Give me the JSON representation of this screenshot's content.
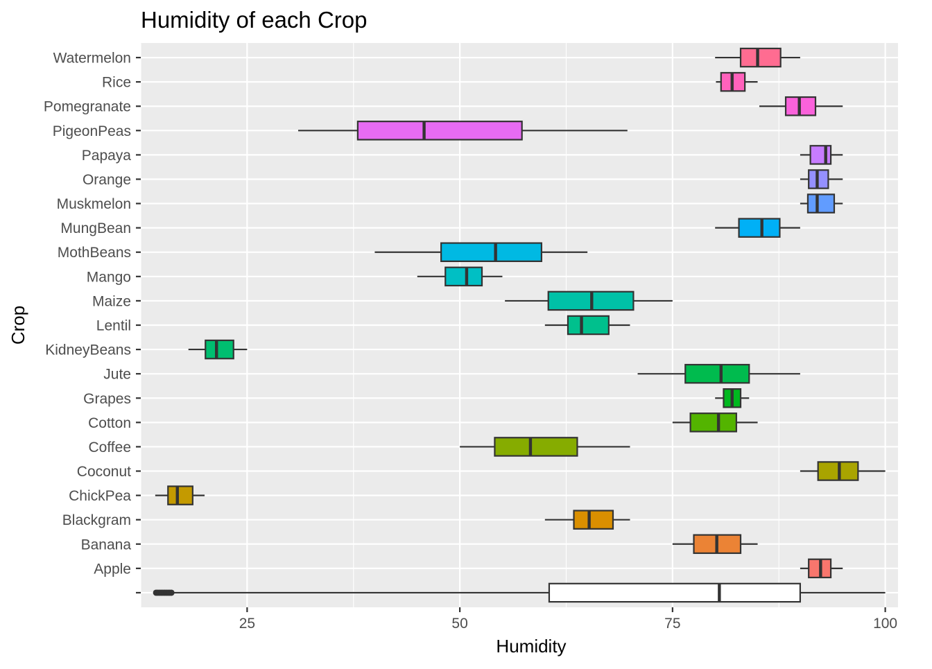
{
  "chart_data": {
    "type": "boxplot",
    "orientation": "horizontal",
    "title": "Humidity of each Crop",
    "xlabel": "Humidity",
    "ylabel": "Crop",
    "xlim": [
      12.5,
      101.5
    ],
    "x_ticks": [
      25,
      50,
      75,
      100
    ],
    "x_tick_labels": [
      "25",
      "50",
      "75",
      "100"
    ],
    "grid": true,
    "legend": "none",
    "categories": [
      {
        "name": "",
        "min": 16.0,
        "q1": 60.5,
        "median": 80.5,
        "q3": 90.0,
        "max": 100.0,
        "color": "#FFFFFF",
        "outliers": [
          14.3,
          14.5,
          14.7,
          14.9,
          15.1,
          15.3,
          15.5,
          15.7,
          15.9,
          16.1
        ]
      },
      {
        "name": "Apple",
        "min": 90.0,
        "q1": 91.0,
        "median": 92.4,
        "q3": 93.6,
        "max": 95.0,
        "color": "#F8766D"
      },
      {
        "name": "Banana",
        "min": 75.0,
        "q1": 77.5,
        "median": 80.2,
        "q3": 83.0,
        "max": 85.0,
        "color": "#EB8335"
      },
      {
        "name": "Blackgram",
        "min": 60.0,
        "q1": 63.4,
        "median": 65.2,
        "q3": 68.0,
        "max": 70.0,
        "color": "#DA8F00"
      },
      {
        "name": "ChickPea",
        "min": 14.2,
        "q1": 15.7,
        "median": 16.8,
        "q3": 18.6,
        "max": 20.0,
        "color": "#C49A00"
      },
      {
        "name": "Coconut",
        "min": 90.0,
        "q1": 92.1,
        "median": 94.6,
        "q3": 96.8,
        "max": 100.0,
        "color": "#A9A400"
      },
      {
        "name": "Coffee",
        "min": 50.0,
        "q1": 54.1,
        "median": 58.3,
        "q3": 63.8,
        "max": 70.0,
        "color": "#86AC00"
      },
      {
        "name": "Cotton",
        "min": 75.0,
        "q1": 77.1,
        "median": 80.4,
        "q3": 82.5,
        "max": 85.0,
        "color": "#53B400"
      },
      {
        "name": "Grapes",
        "min": 80.0,
        "q1": 81.0,
        "median": 82.0,
        "q3": 83.0,
        "max": 84.0,
        "color": "#00B81F"
      },
      {
        "name": "Jute",
        "min": 70.9,
        "q1": 76.5,
        "median": 80.7,
        "q3": 84.0,
        "max": 90.0,
        "color": "#00BB4E"
      },
      {
        "name": "KidneyBeans",
        "min": 18.1,
        "q1": 20.1,
        "median": 21.4,
        "q3": 23.4,
        "max": 25.0,
        "color": "#00BE70"
      },
      {
        "name": "Lentil",
        "min": 60.0,
        "q1": 62.7,
        "median": 64.3,
        "q3": 67.5,
        "max": 70.0,
        "color": "#00C08D"
      },
      {
        "name": "Maize",
        "min": 55.3,
        "q1": 60.4,
        "median": 65.5,
        "q3": 70.4,
        "max": 75.0,
        "color": "#00C1A7"
      },
      {
        "name": "Mango",
        "min": 45.0,
        "q1": 48.3,
        "median": 50.8,
        "q3": 52.6,
        "max": 55.0,
        "color": "#00BFC4"
      },
      {
        "name": "MothBeans",
        "min": 40.0,
        "q1": 47.8,
        "median": 54.2,
        "q3": 59.6,
        "max": 65.0,
        "color": "#00B9E3"
      },
      {
        "name": "MungBean",
        "min": 80.0,
        "q1": 82.8,
        "median": 85.5,
        "q3": 87.6,
        "max": 90.0,
        "color": "#00B0F6"
      },
      {
        "name": "Muskmelon",
        "min": 90.0,
        "q1": 90.9,
        "median": 92.0,
        "q3": 94.0,
        "max": 95.0,
        "color": "#619CFF"
      },
      {
        "name": "Orange",
        "min": 90.0,
        "q1": 91.0,
        "median": 92.0,
        "q3": 93.3,
        "max": 95.0,
        "color": "#9590FF"
      },
      {
        "name": "Papaya",
        "min": 90.0,
        "q1": 91.2,
        "median": 93.0,
        "q3": 93.6,
        "max": 95.0,
        "color": "#C77CFF"
      },
      {
        "name": "PigeonPeas",
        "min": 31.0,
        "q1": 38.0,
        "median": 45.8,
        "q3": 57.3,
        "max": 69.7,
        "color": "#E76BF3"
      },
      {
        "name": "Pomegranate",
        "min": 85.2,
        "q1": 88.3,
        "median": 89.9,
        "q3": 91.8,
        "max": 95.0,
        "color": "#FA62DB"
      },
      {
        "name": "Rice",
        "min": 80.1,
        "q1": 80.7,
        "median": 82.0,
        "q3": 83.5,
        "max": 85.0,
        "color": "#FF62BC"
      },
      {
        "name": "Watermelon",
        "min": 80.0,
        "q1": 83.0,
        "median": 85.0,
        "q3": 87.7,
        "max": 90.0,
        "color": "#FF6C91"
      }
    ]
  }
}
